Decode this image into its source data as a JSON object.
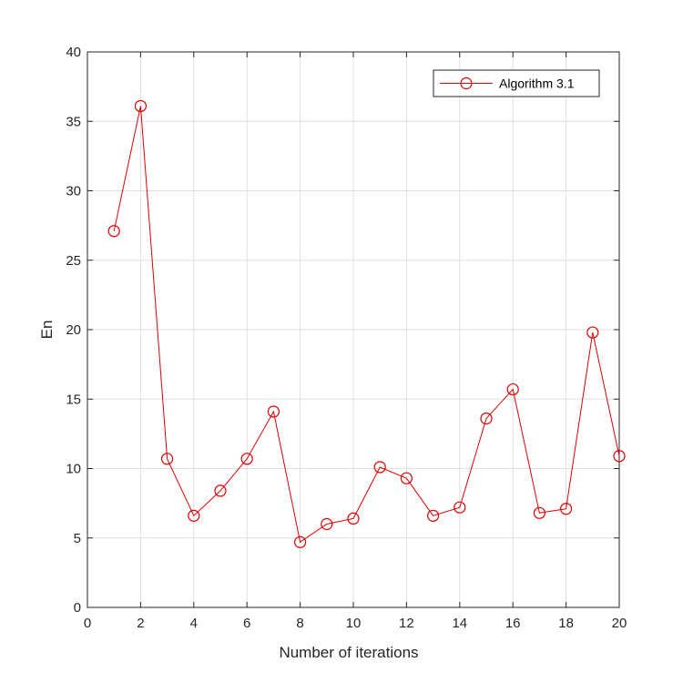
{
  "chart_data": {
    "type": "line",
    "title": "",
    "xlabel": "Number of iterations",
    "ylabel": "En",
    "xlim": [
      0,
      20
    ],
    "ylim": [
      0,
      40
    ],
    "xticks": [
      0,
      2,
      4,
      6,
      8,
      10,
      12,
      14,
      16,
      18,
      20
    ],
    "yticks": [
      0,
      5,
      10,
      15,
      20,
      25,
      30,
      35,
      40
    ],
    "grid": true,
    "legend_position": "top-right",
    "series": [
      {
        "name": "Algorithm 3.1",
        "color": "#dd0000",
        "marker": "circle",
        "x": [
          1,
          2,
          3,
          4,
          5,
          6,
          7,
          8,
          9,
          10,
          11,
          12,
          13,
          14,
          15,
          16,
          17,
          18,
          19,
          20
        ],
        "y": [
          27.1,
          36.1,
          10.7,
          6.6,
          8.4,
          10.7,
          14.1,
          4.7,
          6.0,
          6.4,
          10.1,
          9.3,
          6.6,
          7.2,
          13.6,
          15.7,
          6.8,
          7.1,
          19.8,
          10.9
        ]
      }
    ]
  }
}
